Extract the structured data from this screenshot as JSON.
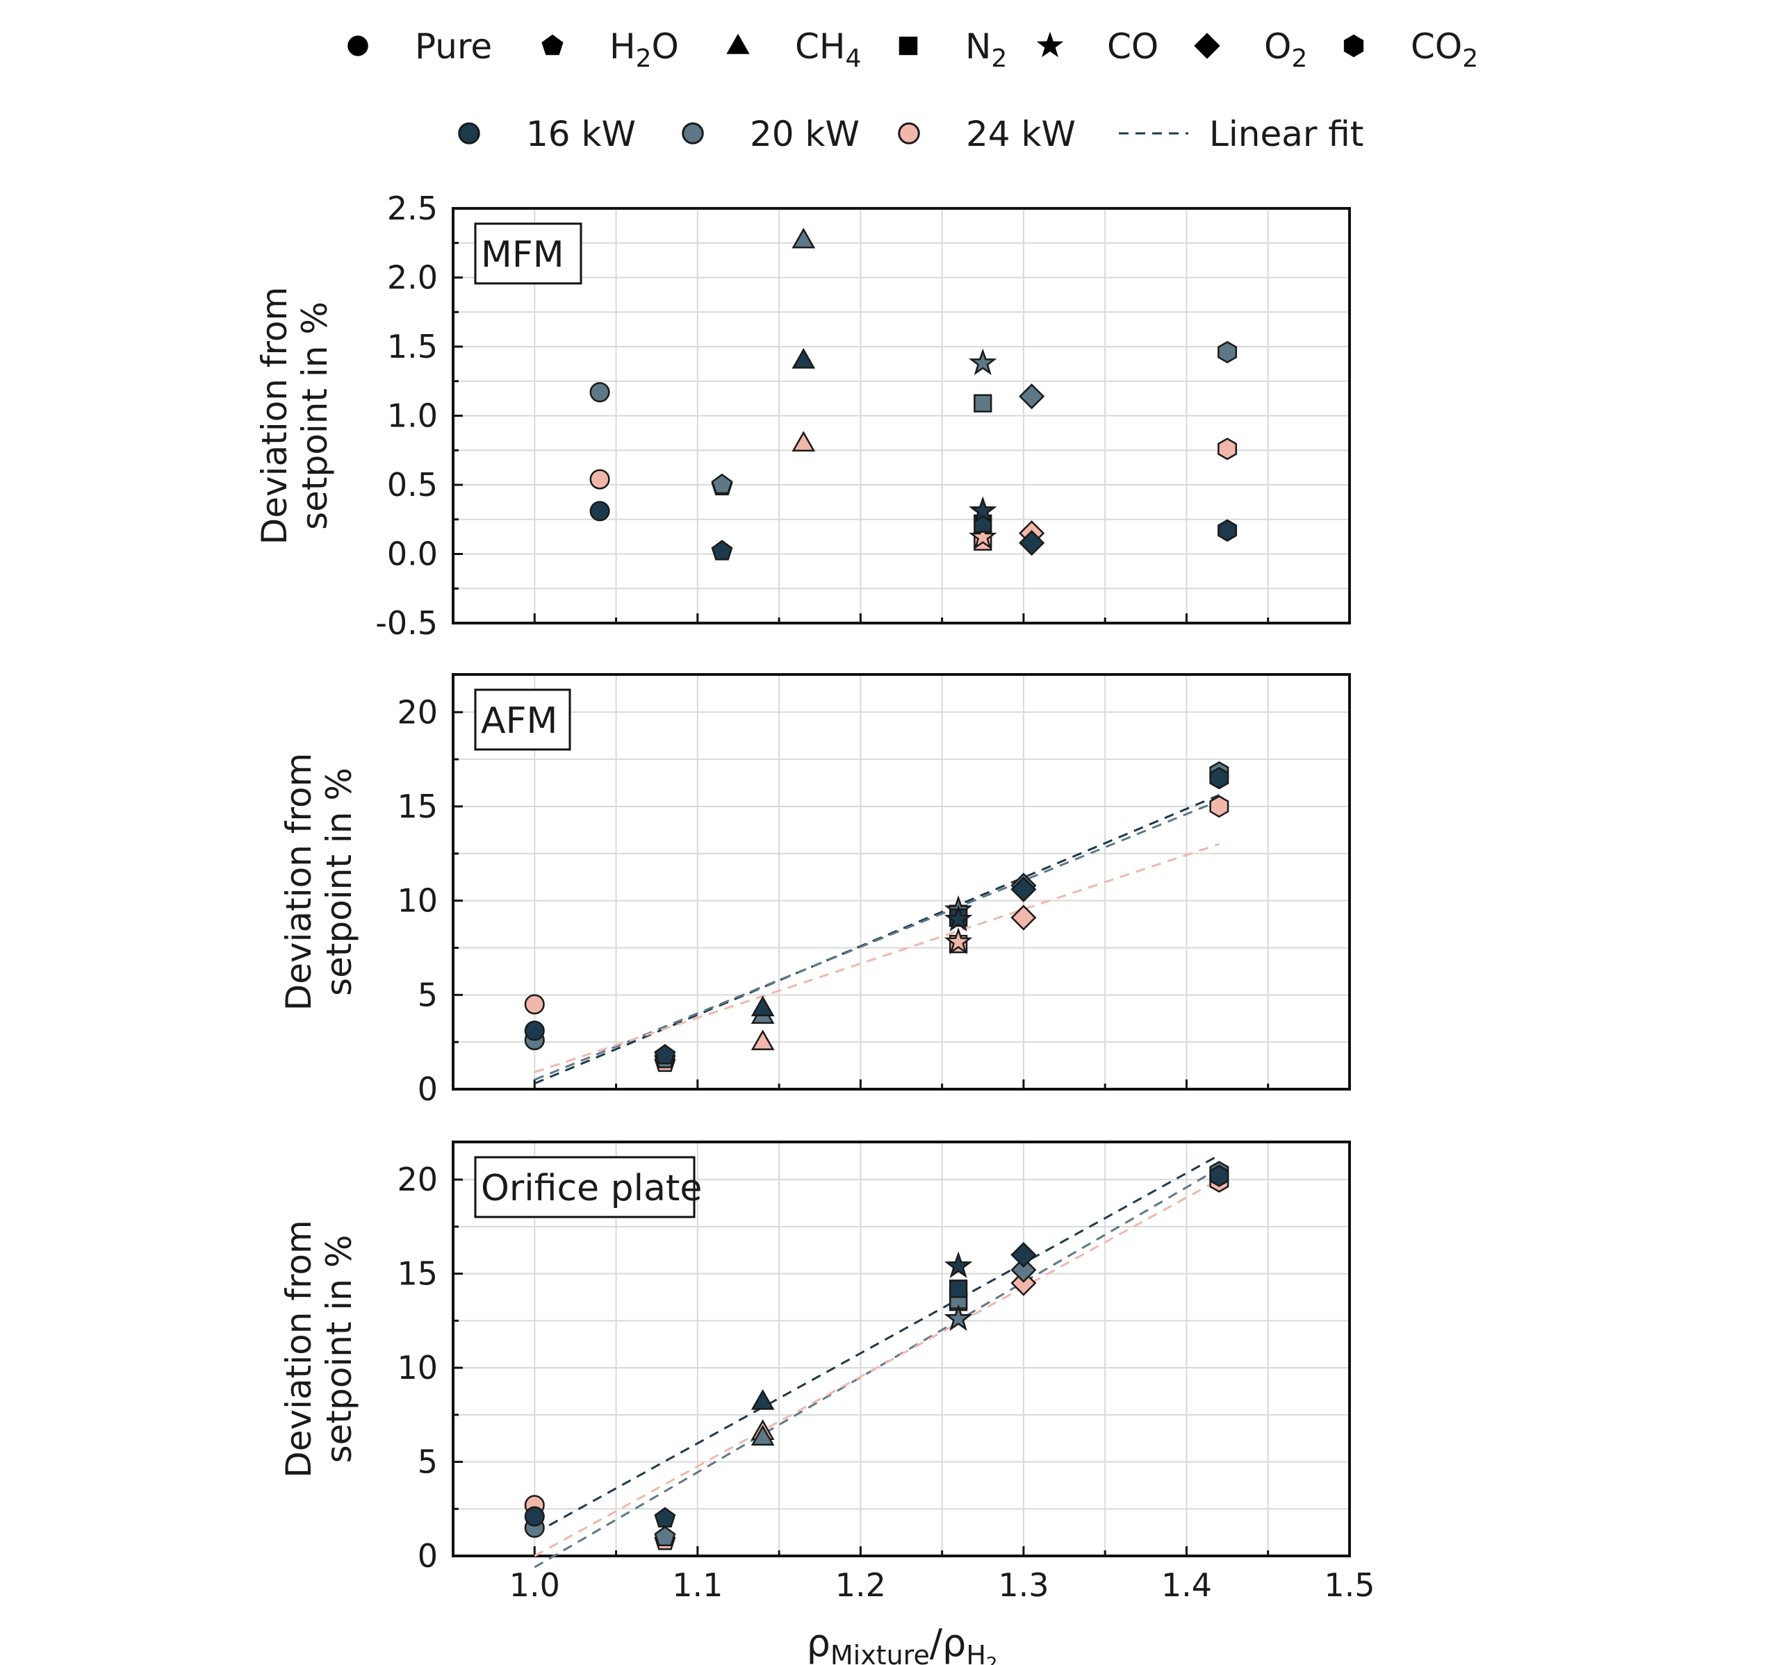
{
  "legend": {
    "gases": [
      {
        "label": "Pure",
        "marker": "circle"
      },
      {
        "label": "H",
        "sub": "2",
        "tail": "O",
        "marker": "pentagon"
      },
      {
        "label": "CH",
        "sub": "4",
        "tail": "",
        "marker": "triangle"
      },
      {
        "label": "N",
        "sub": "2",
        "tail": "",
        "marker": "square"
      },
      {
        "label": "CO",
        "marker": "star"
      },
      {
        "label": "O",
        "sub": "2",
        "tail": "",
        "marker": "diamond"
      },
      {
        "label": "CO",
        "sub": "2",
        "tail": "",
        "marker": "hexagon"
      }
    ],
    "powers": [
      {
        "label": "16 kW",
        "color": "#1d3a4c"
      },
      {
        "label": "20 kW",
        "color": "#5e7887"
      },
      {
        "label": "24 kW",
        "color": "#f2b7ab"
      }
    ],
    "fit_label": "Linear fit"
  },
  "axes_text": {
    "ylabel_line1": "Deviation  from",
    "ylabel_line2": "setpoint in %",
    "xlabel_rho": "ρ",
    "xlabel_sub1": "Mixture",
    "xlabel_slash": "/ρ",
    "xlabel_sub2": "H",
    "xlabel_sub3": "2"
  },
  "chart_data": [
    {
      "type": "scatter",
      "panel": "MFM",
      "xlim": [
        0.95,
        1.5
      ],
      "ylim": [
        -0.5,
        2.5
      ],
      "xticks": [
        1.0,
        1.1,
        1.2,
        1.3,
        1.4,
        1.5
      ],
      "yticks": [
        -0.5,
        0.0,
        0.5,
        1.0,
        1.5,
        2.0,
        2.5
      ],
      "ytick_labels": [
        "-0.5",
        "0.0",
        "0.5",
        "1.0",
        "1.5",
        "2.0",
        "2.5"
      ],
      "show_x_ticklabels": false,
      "grid": true,
      "points": [
        {
          "gas": "Pure",
          "power": "16 kW",
          "x": 1.04,
          "y": 0.31
        },
        {
          "gas": "Pure",
          "power": "20 kW",
          "x": 1.04,
          "y": 1.17
        },
        {
          "gas": "Pure",
          "power": "24 kW",
          "x": 1.04,
          "y": 0.54
        },
        {
          "gas": "H2O",
          "power": "16 kW",
          "x": 1.115,
          "y": 0.02
        },
        {
          "gas": "H2O",
          "power": "20 kW",
          "x": 1.115,
          "y": 0.5
        },
        {
          "gas": "H2O",
          "power": "24 kW",
          "x": 1.115,
          "y": 0.49
        },
        {
          "gas": "CH4",
          "power": "16 kW",
          "x": 1.165,
          "y": 1.4
        },
        {
          "gas": "CH4",
          "power": "20 kW",
          "x": 1.165,
          "y": 2.27
        },
        {
          "gas": "CH4",
          "power": "24 kW",
          "x": 1.165,
          "y": 0.8
        },
        {
          "gas": "N2",
          "power": "16 kW",
          "x": 1.275,
          "y": 0.22
        },
        {
          "gas": "N2",
          "power": "20 kW",
          "x": 1.275,
          "y": 1.09
        },
        {
          "gas": "N2",
          "power": "24 kW",
          "x": 1.275,
          "y": 0.09
        },
        {
          "gas": "CO",
          "power": "16 kW",
          "x": 1.275,
          "y": 0.31
        },
        {
          "gas": "CO",
          "power": "20 kW",
          "x": 1.275,
          "y": 1.38
        },
        {
          "gas": "CO",
          "power": "24 kW",
          "x": 1.275,
          "y": 0.12
        },
        {
          "gas": "O2",
          "power": "16 kW",
          "x": 1.305,
          "y": 0.08
        },
        {
          "gas": "O2",
          "power": "20 kW",
          "x": 1.305,
          "y": 1.14
        },
        {
          "gas": "O2",
          "power": "24 kW",
          "x": 1.305,
          "y": 0.15
        },
        {
          "gas": "CO2",
          "power": "16 kW",
          "x": 1.425,
          "y": 0.17
        },
        {
          "gas": "CO2",
          "power": "20 kW",
          "x": 1.425,
          "y": 1.46
        },
        {
          "gas": "CO2",
          "power": "24 kW",
          "x": 1.425,
          "y": 0.76
        }
      ],
      "fits": []
    },
    {
      "type": "scatter",
      "panel": "AFM",
      "xlim": [
        0.95,
        1.5
      ],
      "ylim": [
        0,
        22
      ],
      "xticks": [
        1.0,
        1.1,
        1.2,
        1.3,
        1.4,
        1.5
      ],
      "yticks": [
        0,
        5,
        10,
        15,
        20
      ],
      "ytick_labels": [
        "0",
        "5",
        "10",
        "15",
        "20"
      ],
      "show_x_ticklabels": false,
      "grid": true,
      "points": [
        {
          "gas": "Pure",
          "power": "16 kW",
          "x": 1.0,
          "y": 3.1
        },
        {
          "gas": "Pure",
          "power": "20 kW",
          "x": 1.0,
          "y": 2.6
        },
        {
          "gas": "Pure",
          "power": "24 kW",
          "x": 1.0,
          "y": 4.5
        },
        {
          "gas": "H2O",
          "power": "16 kW",
          "x": 1.08,
          "y": 1.8
        },
        {
          "gas": "H2O",
          "power": "20 kW",
          "x": 1.08,
          "y": 1.6
        },
        {
          "gas": "H2O",
          "power": "24 kW",
          "x": 1.08,
          "y": 1.4
        },
        {
          "gas": "CH4",
          "power": "16 kW",
          "x": 1.14,
          "y": 4.3
        },
        {
          "gas": "CH4",
          "power": "20 kW",
          "x": 1.14,
          "y": 3.9
        },
        {
          "gas": "CH4",
          "power": "24 kW",
          "x": 1.14,
          "y": 2.5
        },
        {
          "gas": "N2",
          "power": "16 kW",
          "x": 1.26,
          "y": 9.1
        },
        {
          "gas": "N2",
          "power": "20 kW",
          "x": 1.26,
          "y": 9.3
        },
        {
          "gas": "N2",
          "power": "24 kW",
          "x": 1.26,
          "y": 7.7
        },
        {
          "gas": "CO",
          "power": "16 kW",
          "x": 1.26,
          "y": 9.0
        },
        {
          "gas": "CO",
          "power": "20 kW",
          "x": 1.26,
          "y": 9.5
        },
        {
          "gas": "CO",
          "power": "24 kW",
          "x": 1.26,
          "y": 7.8
        },
        {
          "gas": "O2",
          "power": "16 kW",
          "x": 1.3,
          "y": 10.6
        },
        {
          "gas": "O2",
          "power": "20 kW",
          "x": 1.3,
          "y": 10.8
        },
        {
          "gas": "O2",
          "power": "24 kW",
          "x": 1.3,
          "y": 9.1
        },
        {
          "gas": "CO2",
          "power": "16 kW",
          "x": 1.42,
          "y": 16.5
        },
        {
          "gas": "CO2",
          "power": "20 kW",
          "x": 1.42,
          "y": 16.8
        },
        {
          "gas": "CO2",
          "power": "24 kW",
          "x": 1.42,
          "y": 15.0
        }
      ],
      "fits": [
        {
          "power": "16 kW",
          "x": [
            1.0,
            1.42
          ],
          "y": [
            0.3,
            15.6
          ]
        },
        {
          "power": "20 kW",
          "x": [
            1.0,
            1.42
          ],
          "y": [
            0.5,
            15.3
          ]
        },
        {
          "power": "24 kW",
          "x": [
            1.0,
            1.42
          ],
          "y": [
            0.9,
            13.0
          ]
        }
      ]
    },
    {
      "type": "scatter",
      "panel": "Orifice plate",
      "xlim": [
        0.95,
        1.5
      ],
      "ylim": [
        0,
        22
      ],
      "xticks": [
        1.0,
        1.1,
        1.2,
        1.3,
        1.4,
        1.5
      ],
      "yticks": [
        0,
        5,
        10,
        15,
        20
      ],
      "ytick_labels": [
        "0",
        "5",
        "10",
        "15",
        "20"
      ],
      "xtick_labels": [
        "1.0",
        "1.1",
        "1.2",
        "1.3",
        "1.4",
        "1.5"
      ],
      "show_x_ticklabels": true,
      "grid": true,
      "points": [
        {
          "gas": "Pure",
          "power": "16 kW",
          "x": 1.0,
          "y": 2.1
        },
        {
          "gas": "Pure",
          "power": "20 kW",
          "x": 1.0,
          "y": 1.5
        },
        {
          "gas": "Pure",
          "power": "24 kW",
          "x": 1.0,
          "y": 2.7
        },
        {
          "gas": "H2O",
          "power": "16 kW",
          "x": 1.08,
          "y": 2.0
        },
        {
          "gas": "H2O",
          "power": "20 kW",
          "x": 1.08,
          "y": 1.0
        },
        {
          "gas": "H2O",
          "power": "24 kW",
          "x": 1.08,
          "y": 0.8
        },
        {
          "gas": "CH4",
          "power": "16 kW",
          "x": 1.14,
          "y": 8.2
        },
        {
          "gas": "CH4",
          "power": "20 kW",
          "x": 1.14,
          "y": 6.3
        },
        {
          "gas": "CH4",
          "power": "24 kW",
          "x": 1.14,
          "y": 6.6
        },
        {
          "gas": "N2",
          "power": "16 kW",
          "x": 1.26,
          "y": 14.2
        },
        {
          "gas": "N2",
          "power": "20 kW",
          "x": 1.26,
          "y": 13.6
        },
        {
          "gas": "N2",
          "power": "24 kW",
          "x": 1.26,
          "y": 13.5
        },
        {
          "gas": "CO",
          "power": "16 kW",
          "x": 1.26,
          "y": 15.4
        },
        {
          "gas": "CO",
          "power": "20 kW",
          "x": 1.26,
          "y": 12.6
        },
        {
          "gas": "CO",
          "power": "24 kW",
          "x": 1.26,
          "y": 12.6
        },
        {
          "gas": "O2",
          "power": "16 kW",
          "x": 1.3,
          "y": 16.0
        },
        {
          "gas": "O2",
          "power": "20 kW",
          "x": 1.3,
          "y": 15.2
        },
        {
          "gas": "O2",
          "power": "24 kW",
          "x": 1.3,
          "y": 14.5
        },
        {
          "gas": "CO2",
          "power": "16 kW",
          "x": 1.42,
          "y": 20.2
        },
        {
          "gas": "CO2",
          "power": "20 kW",
          "x": 1.42,
          "y": 20.4
        },
        {
          "gas": "CO2",
          "power": "24 kW",
          "x": 1.42,
          "y": 19.9
        }
      ],
      "fits": [
        {
          "power": "16 kW",
          "x": [
            1.0,
            1.42
          ],
          "y": [
            1.2,
            21.3
          ]
        },
        {
          "power": "20 kW",
          "x": [
            1.0,
            1.42
          ],
          "y": [
            -0.6,
            20.6
          ]
        },
        {
          "power": "24 kW",
          "x": [
            1.0,
            1.42
          ],
          "y": [
            0.0,
            20.0
          ]
        }
      ]
    }
  ]
}
